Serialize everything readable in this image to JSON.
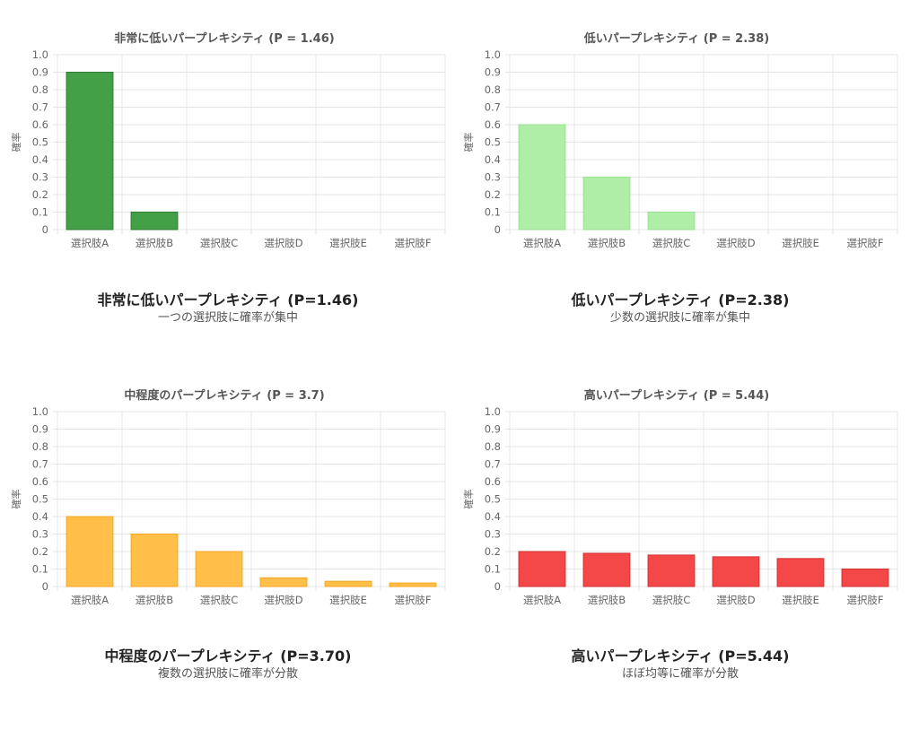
{
  "chart_data": [
    {
      "type": "bar",
      "title": "非常に低いパープレキシティ (P = 1.46)",
      "ylabel": "確率",
      "categories": [
        "選択肢A",
        "選択肢B",
        "選択肢C",
        "選択肢D",
        "選択肢E",
        "選択肢F"
      ],
      "values": [
        0.9,
        0.1,
        0,
        0,
        0,
        0
      ],
      "ylim": [
        0,
        1.0
      ],
      "yticks": [
        "0",
        "0.1",
        "0.2",
        "0.3",
        "0.4",
        "0.5",
        "0.6",
        "0.7",
        "0.8",
        "0.9",
        "1.0"
      ],
      "grid": true,
      "bar_color": "#43a047",
      "bar_border": "#2e7d32"
    },
    {
      "type": "bar",
      "title": "低いパープレキシティ (P = 2.38)",
      "ylabel": "確率",
      "categories": [
        "選択肢A",
        "選択肢B",
        "選択肢C",
        "選択肢D",
        "選択肢E",
        "選択肢F"
      ],
      "values": [
        0.6,
        0.3,
        0.1,
        0,
        0,
        0
      ],
      "ylim": [
        0,
        1.0
      ],
      "yticks": [
        "0",
        "0.1",
        "0.2",
        "0.3",
        "0.4",
        "0.5",
        "0.6",
        "0.7",
        "0.8",
        "0.9",
        "1.0"
      ],
      "grid": true,
      "bar_color": "#aeeea6",
      "bar_border": "#9be092"
    },
    {
      "type": "bar",
      "title": "中程度のパープレキシティ (P = 3.7)",
      "ylabel": "確率",
      "categories": [
        "選択肢A",
        "選択肢B",
        "選択肢C",
        "選択肢D",
        "選択肢E",
        "選択肢F"
      ],
      "values": [
        0.4,
        0.3,
        0.2,
        0.05,
        0.03,
        0.02
      ],
      "ylim": [
        0,
        1.0
      ],
      "yticks": [
        "0",
        "0.1",
        "0.2",
        "0.3",
        "0.4",
        "0.5",
        "0.6",
        "0.7",
        "0.8",
        "0.9",
        "1.0"
      ],
      "grid": true,
      "bar_color": "#ffbf48",
      "bar_border": "#f5a623"
    },
    {
      "type": "bar",
      "title": "高いパープレキシティ (P = 5.44)",
      "ylabel": "確率",
      "categories": [
        "選択肢A",
        "選択肢B",
        "選択肢C",
        "選択肢D",
        "選択肢E",
        "選択肢F"
      ],
      "values": [
        0.2,
        0.19,
        0.18,
        0.17,
        0.16,
        0.1
      ],
      "ylim": [
        0,
        1.0
      ],
      "yticks": [
        "0",
        "0.1",
        "0.2",
        "0.3",
        "0.4",
        "0.5",
        "0.6",
        "0.7",
        "0.8",
        "0.9",
        "1.0"
      ],
      "grid": true,
      "bar_color": "#f44848",
      "bar_border": "#d32f2f"
    }
  ],
  "captions": [
    {
      "title": "非常に低いパープレキシティ (P=1.46)",
      "subtitle": "一つの選択肢に確率が集中"
    },
    {
      "title": "低いパープレキシティ (P=2.38)",
      "subtitle": "少数の選択肢に確率が集中"
    },
    {
      "title": "中程度のパープレキシティ (P=3.70)",
      "subtitle": "複数の選択肢に確率が分散"
    },
    {
      "title": "高いパープレキシティ (P=5.44)",
      "subtitle": "ほぼ均等に確率が分散"
    }
  ]
}
